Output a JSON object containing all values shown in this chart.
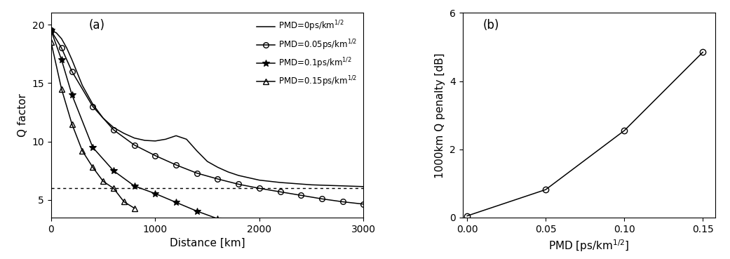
{
  "fig_width": 10.41,
  "fig_height": 3.69,
  "dpi": 100,
  "panel_a": {
    "label": "(a)",
    "xlabel": "Distance [km]",
    "ylabel": "Q factor",
    "xlim": [
      0,
      3000
    ],
    "ylim": [
      3.5,
      21
    ],
    "yticks": [
      5,
      10,
      15,
      20
    ],
    "xticks": [
      0,
      1000,
      2000,
      3000
    ],
    "dashed_line_y": 6.0,
    "curves": [
      {
        "label": "PMD=0ps/km$^{1/2}$",
        "marker": "none",
        "linestyle": "-",
        "color": "#000000",
        "x": [
          0,
          50,
          100,
          150,
          200,
          300,
          400,
          500,
          600,
          700,
          800,
          900,
          1000,
          1100,
          1200,
          1300,
          1400,
          1500,
          1600,
          1700,
          1800,
          1900,
          2000,
          2200,
          2500,
          3000
        ],
        "y": [
          19.5,
          19.3,
          18.8,
          18.0,
          17.0,
          14.8,
          13.2,
          12.0,
          11.2,
          10.7,
          10.3,
          10.1,
          10.05,
          10.2,
          10.5,
          10.2,
          9.2,
          8.3,
          7.8,
          7.4,
          7.1,
          6.9,
          6.7,
          6.5,
          6.3,
          6.15
        ]
      },
      {
        "label": "PMD=0.05ps/km$^{1/2}$",
        "marker": "o",
        "markersize": 5.5,
        "linestyle": "-",
        "color": "#000000",
        "x": [
          0,
          100,
          200,
          400,
          600,
          800,
          1000,
          1200,
          1400,
          1600,
          1800,
          2000,
          2200,
          2400,
          2600,
          2800,
          3000
        ],
        "y": [
          19.5,
          18.0,
          16.0,
          13.0,
          11.0,
          9.7,
          8.8,
          8.0,
          7.3,
          6.8,
          6.35,
          6.0,
          5.7,
          5.4,
          5.1,
          4.85,
          4.65
        ]
      },
      {
        "label": "PMD=0.1ps/km$^{1/2}$",
        "marker": "*",
        "markersize": 7,
        "linestyle": "-",
        "color": "#000000",
        "x": [
          0,
          100,
          200,
          400,
          600,
          800,
          1000,
          1200,
          1400,
          1600
        ],
        "y": [
          19.5,
          17.0,
          14.0,
          9.5,
          7.5,
          6.2,
          5.55,
          4.8,
          4.05,
          3.4
        ]
      },
      {
        "label": "PMD=0.15ps/km$^{1/2}$",
        "marker": "^",
        "markersize": 6,
        "linestyle": "-",
        "color": "#000000",
        "x": [
          0,
          100,
          200,
          300,
          400,
          500,
          600,
          700,
          800
        ],
        "y": [
          18.5,
          14.5,
          11.5,
          9.2,
          7.8,
          6.6,
          6.0,
          4.85,
          4.3
        ]
      }
    ]
  },
  "panel_b": {
    "label": "(b)",
    "xlabel": "PMD [ps/km$^{1/2}$]",
    "ylabel": "1000km Q penalty [dB]",
    "xlim": [
      -0.003,
      0.158
    ],
    "ylim": [
      0,
      6
    ],
    "xticks": [
      0,
      0.05,
      0.1,
      0.15
    ],
    "yticks": [
      0,
      2,
      4,
      6
    ],
    "x": [
      0.0,
      0.05,
      0.1,
      0.15
    ],
    "y": [
      0.05,
      0.82,
      2.55,
      4.85
    ],
    "marker": "o",
    "markersize": 6,
    "linestyle": "-",
    "color": "#000000"
  }
}
